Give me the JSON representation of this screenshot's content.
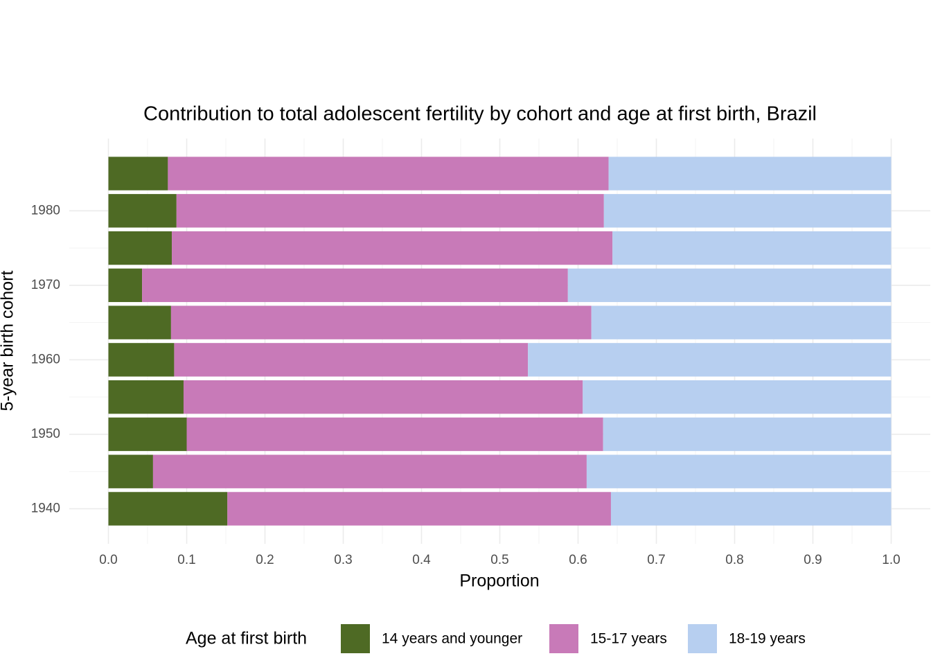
{
  "chart_data": {
    "type": "stacked-bar-horizontal",
    "title": "Contribution to total adolescent fertility by cohort and age at first birth,  Brazil",
    "x_label": "Proportion",
    "y_label": "5-year birth cohort",
    "legend_title": "Age at first birth",
    "legend_position": "bottom",
    "y": [
      1940,
      1945,
      1950,
      1955,
      1960,
      1965,
      1970,
      1975,
      1980,
      1985
    ],
    "series": [
      {
        "name": "14 years and younger",
        "color": "#4e6a24",
        "values": [
          0.152,
          0.057,
          0.1,
          0.096,
          0.084,
          0.08,
          0.043,
          0.081,
          0.087,
          0.076
        ]
      },
      {
        "name": "15-17 years",
        "color": "#c87ab8",
        "values": [
          0.49,
          0.554,
          0.532,
          0.51,
          0.452,
          0.537,
          0.544,
          0.563,
          0.546,
          0.563
        ]
      },
      {
        "name": "18-19 years",
        "color": "#b7cff0",
        "values": [
          0.358,
          0.389,
          0.368,
          0.394,
          0.464,
          0.383,
          0.413,
          0.356,
          0.367,
          0.361
        ]
      }
    ],
    "xlim": [
      -0.05,
      1.05
    ],
    "xticks": [
      {
        "value": 0,
        "label": "0.0"
      },
      0.1,
      0.2,
      0.3,
      0.4,
      0.5,
      0.6,
      0.7,
      0.8,
      0.9,
      {
        "value": 1,
        "label": "1.0"
      }
    ],
    "ylim": [
      1935.3,
      1989.7
    ],
    "yticks": [
      1940,
      1950,
      1960,
      1970,
      1980
    ],
    "grid": true
  }
}
